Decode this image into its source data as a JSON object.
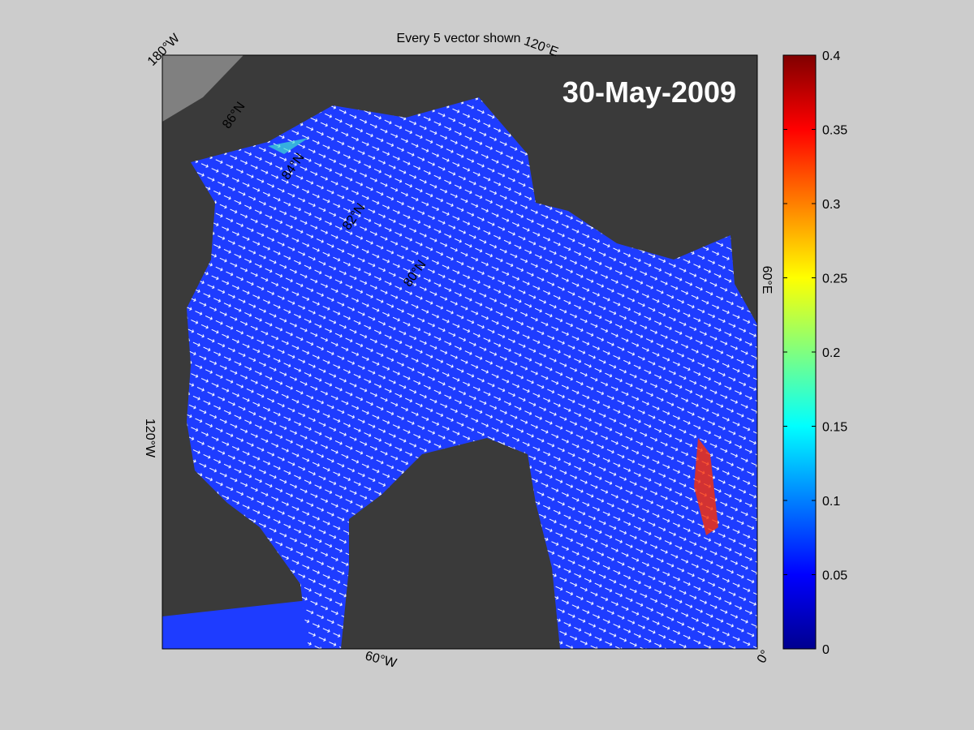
{
  "title": "Every 5 vector shown",
  "date_label": "30-May-2009",
  "lon_labels": [
    "180°W",
    "120°E",
    "60°E",
    "0°",
    "60°W",
    "120°W"
  ],
  "lat_labels": [
    "86°N",
    "84°N",
    "82°N",
    "80°N"
  ],
  "colorbar": {
    "lim": [
      0,
      0.4
    ],
    "ticks": [
      0,
      0.05,
      0.1,
      0.15,
      0.2,
      0.25,
      0.3,
      0.35,
      0.4
    ]
  }
}
